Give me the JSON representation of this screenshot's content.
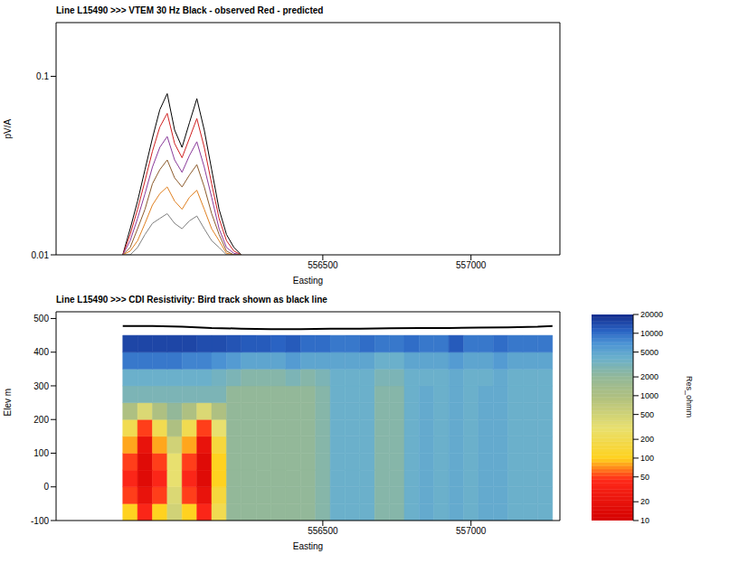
{
  "chart_data": [
    {
      "type": "line",
      "title": "Line L15490 >>> VTEM 30 Hz   Black - observed   Red - predicted",
      "x_label": "Easting",
      "y_label": "pV/A",
      "log": "y",
      "xlim": [
        555600,
        557300
      ],
      "xticks": [
        556500,
        557000
      ],
      "ylim": [
        0.01,
        0.2
      ],
      "yticks": [
        0.01,
        0.1
      ],
      "x": [
        555825,
        555850,
        555875,
        555900,
        555925,
        555950,
        555975,
        556000,
        556025,
        556050,
        556075,
        556100,
        556125,
        556150,
        556175,
        556200,
        556225
      ],
      "series": [
        {
          "color": "#000000",
          "values": [
            0.01,
            0.014,
            0.02,
            0.03,
            0.045,
            0.065,
            0.08,
            0.05,
            0.04,
            0.055,
            0.075,
            0.05,
            0.03,
            0.018,
            0.013,
            0.011,
            0.01
          ]
        },
        {
          "color": "#d02020",
          "values": [
            0.01,
            0.013,
            0.018,
            0.026,
            0.038,
            0.052,
            0.062,
            0.042,
            0.035,
            0.045,
            0.058,
            0.04,
            0.025,
            0.016,
            0.012,
            0.0105,
            0.01
          ]
        },
        {
          "color": "#8a3a9a",
          "values": [
            0.01,
            0.012,
            0.016,
            0.022,
            0.031,
            0.04,
            0.046,
            0.034,
            0.029,
            0.036,
            0.043,
            0.031,
            0.021,
            0.014,
            0.011,
            0.0102,
            0.01
          ]
        },
        {
          "color": "#8b5a2b",
          "values": [
            0.01,
            0.011,
            0.014,
            0.018,
            0.025,
            0.03,
            0.034,
            0.027,
            0.024,
            0.028,
            0.032,
            0.024,
            0.017,
            0.013,
            0.0105,
            0.01,
            0.01
          ]
        },
        {
          "color": "#e08020",
          "values": [
            0.01,
            0.0105,
            0.012,
            0.015,
            0.019,
            0.022,
            0.024,
            0.02,
            0.018,
            0.021,
            0.023,
            0.018,
            0.014,
            0.012,
            0.0102,
            0.01,
            0.01
          ]
        },
        {
          "color": "#808080",
          "values": [
            0.01,
            0.01,
            0.011,
            0.013,
            0.015,
            0.016,
            0.017,
            0.015,
            0.014,
            0.0155,
            0.0165,
            0.014,
            0.012,
            0.011,
            0.01,
            0.01,
            0.01
          ]
        }
      ]
    },
    {
      "type": "heatmap",
      "title": "Line L15490 >>> CDI Resistivity: Bird track shown as black line",
      "x_label": "Easting",
      "y_label": "Elev m",
      "xlim": [
        555600,
        557300
      ],
      "xticks": [
        556500,
        557000
      ],
      "ylim": [
        -100,
        520
      ],
      "yticks": [
        -100,
        0,
        100,
        200,
        300,
        400,
        500
      ],
      "cells": {
        "x": [
          555825,
          555875,
          555925,
          555975,
          556025,
          556075,
          556125,
          556175,
          556225,
          556275,
          556325,
          556375,
          556425,
          556475,
          556525,
          556575,
          556625,
          556675,
          556725,
          556775,
          556825,
          556875,
          556925,
          556975,
          557025,
          557075,
          557125,
          557175,
          557225,
          557275
        ],
        "y": [
          -100,
          -50,
          0,
          50,
          100,
          150,
          200,
          250,
          300,
          350,
          400,
          450
        ],
        "values": [
          [
            100,
            40,
            100,
            500,
            100,
            40,
            200,
            2000,
            2000,
            2000,
            2000,
            2000,
            2000,
            2500,
            4000,
            4000,
            4000,
            2500,
            2500,
            4000,
            4500,
            4000,
            4500,
            4000,
            4500,
            4500,
            4000,
            4000,
            4000
          ],
          [
            50,
            20,
            50,
            400,
            50,
            20,
            150,
            2000,
            2000,
            2000,
            2000,
            2000,
            2000,
            2500,
            4000,
            4000,
            4000,
            2500,
            2500,
            4000,
            4500,
            4000,
            4500,
            4000,
            4500,
            4500,
            4000,
            4000,
            4000
          ],
          [
            40,
            15,
            40,
            300,
            40,
            15,
            100,
            2000,
            2000,
            2000,
            2000,
            2000,
            2000,
            2500,
            4000,
            4000,
            4000,
            2500,
            2500,
            4000,
            4500,
            4000,
            4500,
            4000,
            4500,
            4500,
            4000,
            4000,
            4000
          ],
          [
            50,
            15,
            50,
            300,
            50,
            15,
            100,
            2000,
            2000,
            2000,
            2000,
            2000,
            2000,
            2500,
            4000,
            4000,
            4000,
            2500,
            2500,
            4000,
            4500,
            4000,
            4500,
            4000,
            4500,
            4500,
            4000,
            4000,
            4000
          ],
          [
            80,
            20,
            80,
            500,
            80,
            20,
            150,
            2000,
            2000,
            2000,
            2000,
            2000,
            2000,
            2500,
            4000,
            4000,
            4000,
            2500,
            2500,
            4000,
            4500,
            4000,
            4500,
            4000,
            4500,
            4500,
            4000,
            4000,
            4000
          ],
          [
            200,
            50,
            200,
            1000,
            200,
            50,
            300,
            2000,
            2000,
            2000,
            2000,
            2000,
            2000,
            2500,
            4000,
            4000,
            4000,
            2500,
            2500,
            4000,
            4500,
            4000,
            4500,
            4000,
            4500,
            4500,
            4000,
            4000,
            4000
          ],
          [
            1000,
            400,
            1000,
            2000,
            1000,
            400,
            1000,
            2000,
            2000,
            2000,
            2000,
            2000,
            2000,
            2500,
            4000,
            4000,
            4000,
            2500,
            2500,
            4000,
            4500,
            4000,
            4500,
            4000,
            4500,
            4500,
            4000,
            4000,
            4000
          ],
          [
            3000,
            3000,
            3000,
            3000,
            3000,
            3000,
            3000,
            2000,
            2000,
            2000,
            2000,
            2000,
            2000,
            2500,
            4000,
            4000,
            4000,
            2500,
            2500,
            4000,
            4500,
            4000,
            4500,
            4000,
            4500,
            4500,
            4000,
            4000,
            4000
          ],
          [
            4000,
            4000,
            4000,
            4000,
            4000,
            4000,
            3500,
            3000,
            2500,
            2500,
            2500,
            3000,
            2500,
            3000,
            4000,
            4000,
            4000,
            3000,
            3000,
            4000,
            4000,
            4000,
            4500,
            4000,
            4000,
            4500,
            4000,
            4000,
            4000
          ],
          [
            9000,
            9000,
            9000,
            9000,
            8000,
            8000,
            7000,
            6000,
            5000,
            5000,
            5000,
            6000,
            5000,
            5000,
            5000,
            5000,
            5000,
            4000,
            4000,
            5000,
            5000,
            5000,
            6000,
            5000,
            5000,
            6000,
            5000,
            5000,
            5000
          ],
          [
            15000,
            15000,
            15000,
            15000,
            15000,
            14000,
            14000,
            13000,
            12000,
            12000,
            11000,
            12000,
            10000,
            10000,
            9000,
            9000,
            10000,
            9000,
            9000,
            10000,
            9000,
            9000,
            12000,
            9000,
            9000,
            10000,
            9000,
            9000,
            9000
          ]
        ]
      },
      "colorbar": {
        "label": "Res_ohmm",
        "range": [
          10,
          20000
        ],
        "ticks": [
          10,
          20,
          50,
          100,
          200,
          500,
          1000,
          2000,
          5000,
          10000,
          20000
        ],
        "log": true
      },
      "series": [
        {
          "color": "#000000",
          "x": [
            555825,
            555925,
            556025,
            556125,
            556225,
            556325,
            556425,
            556525,
            556625,
            556725,
            556825,
            556925,
            557025,
            557125,
            557225,
            557275
          ],
          "values": [
            478,
            478,
            476,
            472,
            470,
            468,
            468,
            470,
            470,
            471,
            472,
            472,
            473,
            474,
            476,
            478
          ]
        }
      ]
    }
  ]
}
